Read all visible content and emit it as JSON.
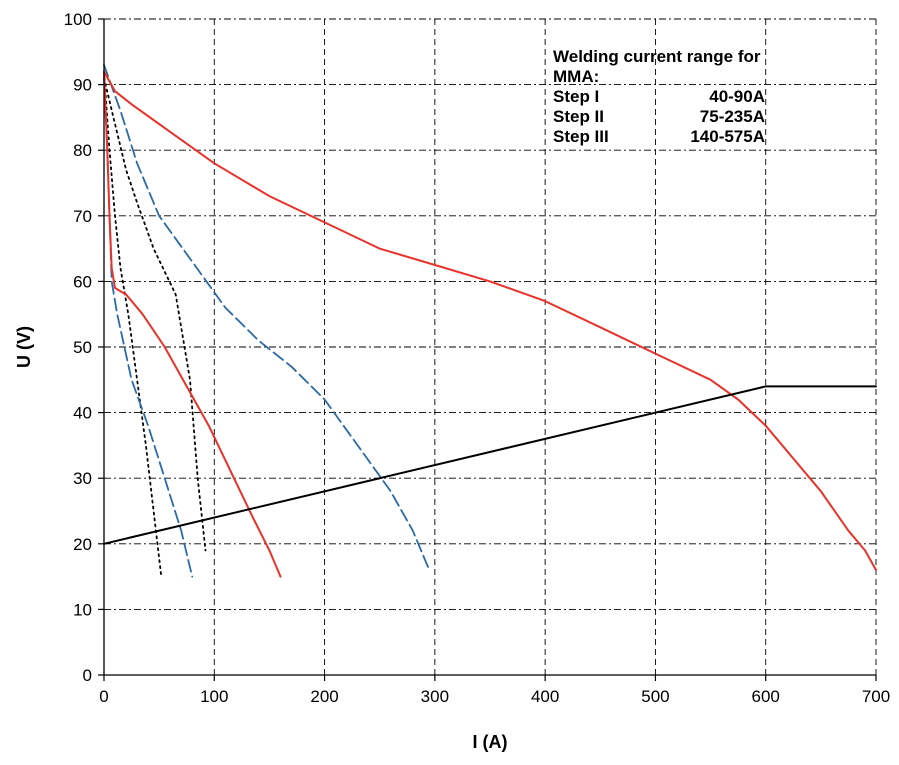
{
  "chart_data": {
    "type": "line",
    "title": "",
    "xlabel": "I (A)",
    "ylabel": "U (V)",
    "xlim": [
      0,
      700
    ],
    "ylim": [
      0,
      100
    ],
    "x_ticks": [
      "0",
      "100",
      "200",
      "300",
      "400",
      "500",
      "600",
      "700"
    ],
    "y_ticks": [
      "0",
      "10",
      "20",
      "30",
      "40",
      "50",
      "60",
      "70",
      "80",
      "90",
      "100"
    ],
    "grid": true,
    "annotation": {
      "title_lines": [
        "Welding current range for",
        "MMA:"
      ],
      "rows": [
        {
          "step": "Step I",
          "range": "40-90A"
        },
        {
          "step": "Step II",
          "range": "75-235A"
        },
        {
          "step": "Step III",
          "range": "140-575A"
        }
      ]
    },
    "colors": {
      "red": "#e8322a",
      "blue": "#2a6aa8",
      "black": "#000000"
    },
    "series": [
      {
        "style": "dotted",
        "color": "#000000",
        "points": [
          [
            0,
            92
          ],
          [
            5,
            80
          ],
          [
            10,
            70
          ],
          [
            15,
            62
          ],
          [
            22,
            55
          ],
          [
            30,
            45
          ],
          [
            38,
            35
          ],
          [
            45,
            25
          ],
          [
            52,
            15
          ]
        ]
      },
      {
        "style": "dotted",
        "color": "#000000",
        "points": [
          [
            0,
            91
          ],
          [
            10,
            84
          ],
          [
            20,
            77
          ],
          [
            30,
            72
          ],
          [
            45,
            65
          ],
          [
            65,
            58
          ],
          [
            78,
            45
          ],
          [
            85,
            30
          ],
          [
            92,
            19
          ]
        ]
      },
      {
        "style": "dashed",
        "color": "#2a6aa8",
        "points": [
          [
            0,
            91
          ],
          [
            3,
            80
          ],
          [
            5,
            70
          ],
          [
            7,
            60
          ],
          [
            12,
            55
          ],
          [
            25,
            45
          ],
          [
            40,
            38
          ],
          [
            55,
            30
          ],
          [
            70,
            22
          ],
          [
            80,
            15
          ]
        ]
      },
      {
        "style": "dashed",
        "color": "#2a6aa8",
        "points": [
          [
            0,
            93
          ],
          [
            15,
            86
          ],
          [
            30,
            78
          ],
          [
            50,
            70
          ],
          [
            80,
            63
          ],
          [
            110,
            56
          ],
          [
            140,
            51
          ],
          [
            170,
            47
          ],
          [
            200,
            42
          ],
          [
            230,
            35
          ],
          [
            260,
            28
          ],
          [
            280,
            22
          ],
          [
            295,
            16
          ]
        ]
      },
      {
        "style": "solid",
        "color": "#e8322a",
        "points": [
          [
            0,
            92
          ],
          [
            3,
            80
          ],
          [
            5,
            70
          ],
          [
            7,
            62
          ],
          [
            10,
            59
          ],
          [
            20,
            58
          ],
          [
            35,
            55
          ],
          [
            55,
            50
          ],
          [
            75,
            44
          ],
          [
            95,
            38
          ],
          [
            115,
            31
          ],
          [
            135,
            24
          ],
          [
            150,
            19
          ],
          [
            160,
            15
          ]
        ]
      },
      {
        "style": "solid",
        "color": "#e8322a",
        "points": [
          [
            0,
            92
          ],
          [
            10,
            89
          ],
          [
            25,
            87
          ],
          [
            50,
            84
          ],
          [
            100,
            78
          ],
          [
            150,
            73
          ],
          [
            200,
            69
          ],
          [
            250,
            65
          ],
          [
            300,
            62.5
          ],
          [
            350,
            60
          ],
          [
            400,
            57
          ],
          [
            450,
            53
          ],
          [
            500,
            49
          ],
          [
            550,
            45
          ],
          [
            575,
            42
          ],
          [
            600,
            38
          ],
          [
            625,
            33
          ],
          [
            650,
            28
          ],
          [
            675,
            22
          ],
          [
            690,
            19
          ],
          [
            700,
            16
          ]
        ]
      },
      {
        "style": "solid",
        "color": "#000000",
        "points": [
          [
            0,
            20
          ],
          [
            600,
            44
          ],
          [
            700,
            44
          ]
        ]
      }
    ]
  }
}
